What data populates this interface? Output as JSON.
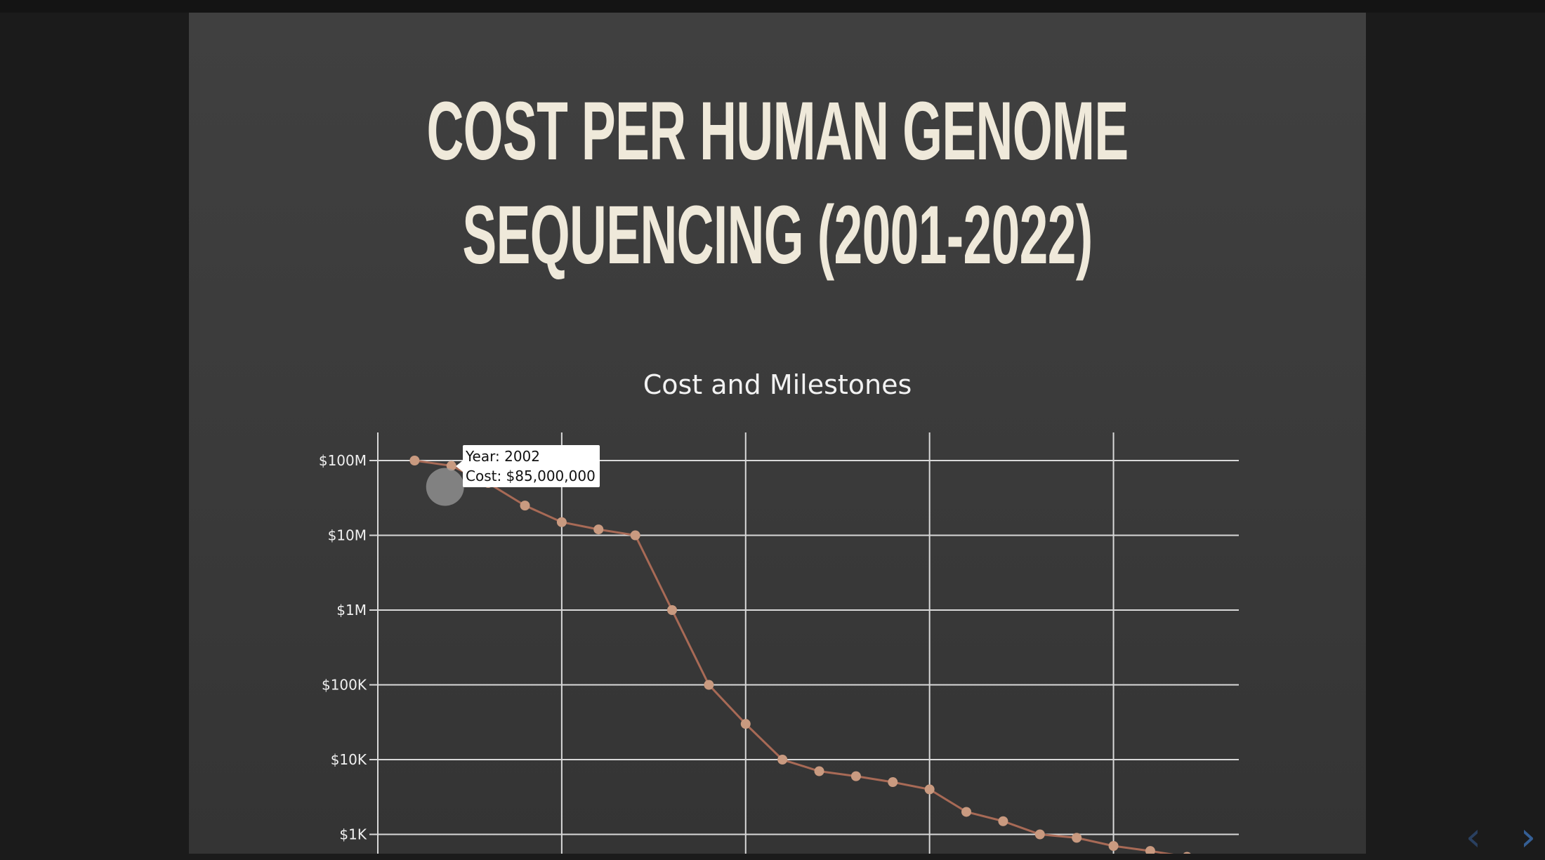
{
  "slide": {
    "title_line1": "COST PER HUMAN GENOME",
    "title_line2": "SEQUENCING (2001-2022)"
  },
  "tooltip": {
    "year_label": "Year: 2002",
    "cost_label": "Cost: $85,000,000"
  },
  "nav": {
    "prev_glyph": "‹",
    "next_glyph": "›"
  },
  "colors": {
    "line": "#a86a56",
    "marker": "#c99a80",
    "grid": "#d9d9d9",
    "background": "#3c3c3c",
    "title": "#efe9da"
  },
  "chart_data": {
    "type": "line",
    "title": "Cost and Milestones",
    "y_scale": "log",
    "y_ticks": [
      {
        "value": 100000000,
        "label": "$100M"
      },
      {
        "value": 10000000,
        "label": "$10M"
      },
      {
        "value": 1000000,
        "label": "$1M"
      },
      {
        "value": 100000,
        "label": "$100K"
      },
      {
        "value": 10000,
        "label": "$10K"
      },
      {
        "value": 1000,
        "label": "$1K"
      }
    ],
    "x_gridlines": [
      2000,
      2005,
      2010,
      2015,
      2020
    ],
    "xlim": [
      2000,
      2023.35
    ],
    "grid": true,
    "series": [
      {
        "x": [
          2001,
          2002,
          2003,
          2004,
          2005,
          2006,
          2007,
          2008,
          2009,
          2010,
          2011,
          2012,
          2013,
          2014,
          2015,
          2016,
          2017,
          2018,
          2019,
          2020,
          2021,
          2022
        ],
        "y": [
          100000000,
          85000000,
          50000000,
          25000000,
          15000000,
          12000000,
          10000000,
          1000000,
          100000,
          30000,
          10000,
          7000,
          6000,
          5000,
          4000,
          2000,
          1500,
          1000,
          900,
          700,
          600,
          500
        ]
      }
    ]
  }
}
